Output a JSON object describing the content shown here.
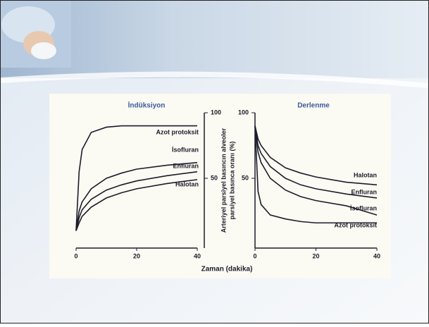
{
  "chart_data": [
    {
      "type": "line",
      "title": "İndüksiyon",
      "x": [
        0,
        1,
        2,
        5,
        10,
        15,
        20,
        30,
        40
      ],
      "series": [
        {
          "name": "Azot protoksit",
          "color": "#1c1c2a",
          "values": [
            10,
            55,
            72,
            85,
            89,
            90,
            90,
            90,
            90
          ]
        },
        {
          "name": "İsofluran",
          "color": "#1c1c2a",
          "values": [
            10,
            25,
            32,
            42,
            50,
            54,
            57,
            60,
            62
          ]
        },
        {
          "name": "Enfluran",
          "color": "#1c1c2a",
          "values": [
            10,
            20,
            26,
            34,
            41,
            45,
            48,
            52,
            55
          ]
        },
        {
          "name": "Halotan",
          "color": "#1c1c2a",
          "values": [
            10,
            16,
            21,
            28,
            35,
            39,
            42,
            46,
            49
          ]
        }
      ],
      "xlim": [
        0,
        40
      ],
      "ylim": [
        0,
        100
      ],
      "xticks": [
        0,
        20,
        40
      ],
      "yticks": [
        50,
        100
      ]
    },
    {
      "type": "line",
      "title": "Derlenme",
      "x": [
        0,
        1,
        2,
        5,
        10,
        15,
        20,
        30,
        40
      ],
      "series": [
        {
          "name": "Halotan",
          "color": "#1c1c2a",
          "values": [
            90,
            80,
            75,
            66,
            58,
            54,
            51,
            47,
            45
          ]
        },
        {
          "name": "Enfluran",
          "color": "#1c1c2a",
          "values": [
            90,
            75,
            69,
            59,
            50,
            45,
            42,
            38,
            35
          ]
        },
        {
          "name": "İsofluran",
          "color": "#1c1c2a",
          "values": [
            90,
            70,
            62,
            50,
            41,
            36,
            33,
            29,
            22
          ]
        },
        {
          "name": "Azot protoksit",
          "color": "#1c1c2a",
          "values": [
            90,
            40,
            30,
            22,
            19,
            17,
            16,
            16,
            16
          ]
        }
      ],
      "xlim": [
        0,
        40
      ],
      "ylim": [
        0,
        100
      ],
      "xticks": [
        0,
        20,
        40
      ],
      "yticks": [
        50,
        100
      ]
    }
  ],
  "axis_labels": {
    "y": [
      "Arteriyel parsiyel basıncın alveoler",
      "parsiyel basınca oranı (%)"
    ],
    "x": "Zaman (dakika)"
  }
}
